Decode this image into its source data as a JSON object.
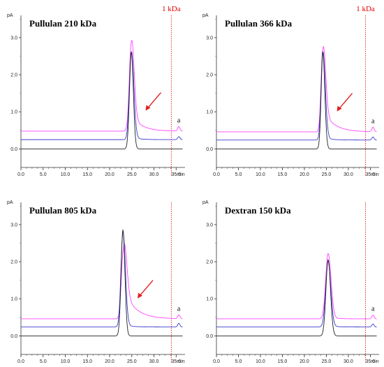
{
  "cutoff": {
    "label": "1 kDa",
    "x": 33.9,
    "color": "#e00000"
  },
  "colors": {
    "magenta": "#ff44ff",
    "blue": "#3a3acc",
    "black": "#222222",
    "arrow": "#e02020"
  },
  "axis": {
    "unit": "min",
    "yunit": "pA",
    "xlim": [
      0,
      37
    ],
    "ylim": [
      -0.5,
      3.6
    ],
    "xticks": [
      "0.0",
      "5.0",
      "10.0",
      "15.0",
      "20.0",
      "25.0",
      "30.0",
      "35.0"
    ],
    "xtick_values": [
      0,
      5,
      10,
      15,
      20,
      25,
      30,
      35
    ],
    "yticks": [
      "0.0",
      "1.0",
      "2.0",
      "3.0"
    ],
    "ytick_values": [
      0,
      1,
      2,
      3
    ]
  },
  "chart_data": [
    {
      "type": "line",
      "title": "Pullulan 210 kDa",
      "show_cutoff_label": true,
      "arrow": true,
      "annotation": "a",
      "series": [
        {
          "color": "magenta",
          "baseline": 0.48,
          "peak_x": 24.9,
          "peak_h": 2.4,
          "sigma_l": 0.45,
          "sigma_r": 0.6,
          "tail_amp": 0.45,
          "tail_tau": 2.2,
          "small_x": 35.6,
          "small_h": 0.12
        },
        {
          "color": "blue",
          "baseline": 0.25,
          "peak_x": 24.9,
          "peak_h": 2.37,
          "sigma_l": 0.45,
          "sigma_r": 0.55,
          "tail_amp": 0.08,
          "tail_tau": 1.5,
          "small_x": 35.6,
          "small_h": 0.08
        },
        {
          "color": "black",
          "baseline": 0.0,
          "peak_x": 24.9,
          "peak_h": 2.6,
          "sigma_l": 0.42,
          "sigma_r": 0.45,
          "tail_amp": 0,
          "tail_tau": 1,
          "small_x": 35.6,
          "small_h": 0
        }
      ]
    },
    {
      "type": "line",
      "title": "Pullulan 366 kDa",
      "show_cutoff_label": true,
      "arrow": true,
      "annotation": "a",
      "series": [
        {
          "color": "magenta",
          "baseline": 0.46,
          "peak_x": 24.2,
          "peak_h": 2.22,
          "sigma_l": 0.4,
          "sigma_r": 0.6,
          "tail_amp": 0.6,
          "tail_tau": 2.4,
          "small_x": 35.6,
          "small_h": 0.12
        },
        {
          "color": "blue",
          "baseline": 0.24,
          "peak_x": 24.2,
          "peak_h": 2.38,
          "sigma_l": 0.4,
          "sigma_r": 0.55,
          "tail_amp": 0.08,
          "tail_tau": 1.5,
          "small_x": 35.6,
          "small_h": 0.08
        },
        {
          "color": "black",
          "baseline": 0.0,
          "peak_x": 24.2,
          "peak_h": 2.6,
          "sigma_l": 0.38,
          "sigma_r": 0.45,
          "tail_amp": 0,
          "tail_tau": 1,
          "small_x": 35.6,
          "small_h": 0
        }
      ]
    },
    {
      "type": "line",
      "title": "Pullulan 805 kDa",
      "show_cutoff_label": false,
      "arrow": true,
      "annotation": "a",
      "series": [
        {
          "color": "magenta",
          "baseline": 0.46,
          "peak_x": 23.1,
          "peak_h": 1.85,
          "sigma_l": 0.45,
          "sigma_r": 0.7,
          "tail_amp": 0.8,
          "tail_tau": 2.6,
          "small_x": 35.6,
          "small_h": 0.1
        },
        {
          "color": "blue",
          "baseline": 0.24,
          "peak_x": 23.0,
          "peak_h": 2.55,
          "sigma_l": 0.45,
          "sigma_r": 0.55,
          "tail_amp": 0.08,
          "tail_tau": 1.5,
          "small_x": 35.6,
          "small_h": 0.1
        },
        {
          "color": "black",
          "baseline": 0.0,
          "peak_x": 23.0,
          "peak_h": 2.85,
          "sigma_l": 0.42,
          "sigma_r": 0.45,
          "tail_amp": 0,
          "tail_tau": 1,
          "small_x": 35.6,
          "small_h": 0
        }
      ]
    },
    {
      "type": "line",
      "title": "Dextran 150 kDa",
      "show_cutoff_label": false,
      "arrow": false,
      "annotation": "a",
      "series": [
        {
          "color": "magenta",
          "baseline": 0.46,
          "peak_x": 25.4,
          "peak_h": 1.76,
          "sigma_l": 0.55,
          "sigma_r": 0.65,
          "tail_amp": 0.05,
          "tail_tau": 1.5,
          "small_x": 35.6,
          "small_h": 0.1
        },
        {
          "color": "blue",
          "baseline": 0.24,
          "peak_x": 25.4,
          "peak_h": 1.76,
          "sigma_l": 0.55,
          "sigma_r": 0.6,
          "tail_amp": 0.04,
          "tail_tau": 1.5,
          "small_x": 35.6,
          "small_h": 0.08
        },
        {
          "color": "black",
          "baseline": 0.0,
          "peak_x": 25.4,
          "peak_h": 2.05,
          "sigma_l": 0.5,
          "sigma_r": 0.55,
          "tail_amp": 0,
          "tail_tau": 1,
          "small_x": 35.6,
          "small_h": 0
        }
      ]
    }
  ]
}
